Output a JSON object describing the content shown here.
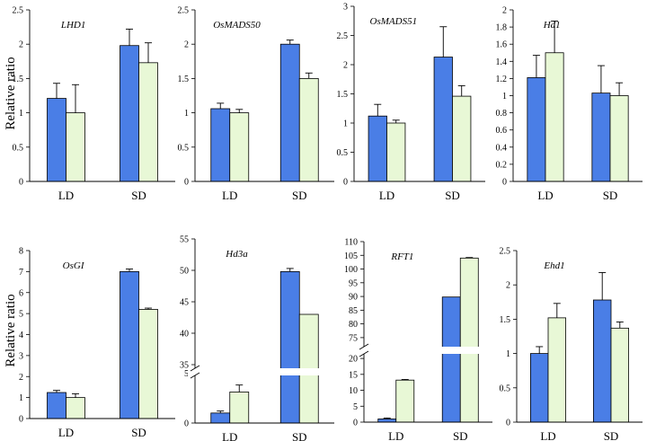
{
  "figure": {
    "ylabel": "Relative ratio",
    "colors": {
      "ld_series": "#4a7ee6",
      "sd_series": "#e8f8d6",
      "axis": "#000000"
    }
  },
  "chart_data": [
    {
      "type": "bar",
      "title": "LHD1",
      "categories": [
        "LD",
        "SD"
      ],
      "series": [
        {
          "values": [
            1.21,
            1.98
          ],
          "errors": [
            0.22,
            0.24
          ]
        },
        {
          "values": [
            1.0,
            1.73
          ],
          "errors": [
            0.41,
            0.29
          ]
        }
      ],
      "ylim": [
        0,
        2.5
      ],
      "yticks": [
        "0",
        "0.5",
        "1",
        "1.5",
        "2",
        "2.5"
      ]
    },
    {
      "type": "bar",
      "title": "OsMADS50",
      "categories": [
        "LD",
        "SD"
      ],
      "series": [
        {
          "values": [
            1.06,
            2.0
          ],
          "errors": [
            0.08,
            0.06
          ]
        },
        {
          "values": [
            1.0,
            1.5
          ],
          "errors": [
            0.05,
            0.08
          ]
        }
      ],
      "ylim": [
        0,
        2.5
      ],
      "yticks": [
        "0",
        "0.5",
        "1",
        "1.5",
        "2",
        "2.5"
      ]
    },
    {
      "type": "bar",
      "title": "OsMADS51",
      "categories": [
        "LD",
        "SD"
      ],
      "series": [
        {
          "values": [
            1.12,
            2.13
          ],
          "errors": [
            0.2,
            0.52
          ]
        },
        {
          "values": [
            1.0,
            1.46
          ],
          "errors": [
            0.05,
            0.18
          ]
        }
      ],
      "ylim": [
        0,
        3
      ],
      "yticks": [
        "0",
        "0.5",
        "1",
        "1.5",
        "2",
        "2.5",
        "3"
      ]
    },
    {
      "type": "bar",
      "title": "Hd1",
      "categories": [
        "LD",
        "SD"
      ],
      "series": [
        {
          "values": [
            1.21,
            1.03
          ],
          "errors": [
            0.26,
            0.32
          ]
        },
        {
          "values": [
            1.5,
            1.0
          ],
          "errors": [
            0.37,
            0.15
          ]
        }
      ],
      "ylim": [
        0,
        2
      ],
      "yticks": [
        "0",
        "0.2",
        "0.4",
        "0.6",
        "0.8",
        "1",
        "1.2",
        "1.4",
        "1.6",
        "1.8",
        "2"
      ]
    },
    {
      "type": "bar",
      "title": "OsGI",
      "categories": [
        "LD",
        "SD"
      ],
      "series": [
        {
          "values": [
            1.24,
            7.0
          ],
          "errors": [
            0.1,
            0.12
          ]
        },
        {
          "values": [
            1.0,
            5.2
          ],
          "errors": [
            0.18,
            0.06
          ]
        }
      ],
      "ylim": [
        0,
        8
      ],
      "yticks": [
        "0",
        "1",
        "2",
        "3",
        "4",
        "5",
        "6",
        "7",
        "8"
      ]
    },
    {
      "type": "bar",
      "title": "Hd3a",
      "categories": [
        "LD",
        "SD"
      ],
      "series": [
        {
          "values": [
            1.0,
            49.8
          ],
          "errors": [
            0.2,
            0.5
          ]
        },
        {
          "values": [
            3.1,
            43.0
          ],
          "errors": [
            0.7,
            0
          ]
        }
      ],
      "ylim": [
        0,
        55
      ],
      "axis_break": [
        7,
        34
      ],
      "yticks_lower": [
        "0",
        "5"
      ],
      "yticks_upper": [
        "35",
        "40",
        "45",
        "50",
        "55"
      ]
    },
    {
      "type": "bar",
      "title": "RFT1",
      "categories": [
        "LD",
        "SD"
      ],
      "series": [
        {
          "values": [
            1.0,
            89.8
          ],
          "errors": [
            0.3,
            0
          ]
        },
        {
          "values": [
            13.2,
            104.0
          ],
          "errors": [
            0.2,
            0.2
          ]
        }
      ],
      "ylim": [
        0,
        110
      ],
      "axis_break": [
        22,
        73
      ],
      "yticks_lower": [
        "0",
        "5",
        "10",
        "15",
        "20"
      ],
      "yticks_upper": [
        "75",
        "80",
        "85",
        "90",
        "95",
        "100",
        "105",
        "110"
      ]
    },
    {
      "type": "bar",
      "title": "Ehd1",
      "categories": [
        "LD",
        "SD"
      ],
      "series": [
        {
          "values": [
            1.0,
            1.78
          ],
          "errors": [
            0.1,
            0.4
          ]
        },
        {
          "values": [
            1.52,
            1.37
          ],
          "errors": [
            0.21,
            0.09
          ]
        }
      ],
      "ylim": [
        0,
        2.5
      ],
      "yticks": [
        "0",
        "0.5",
        "1",
        "1.5",
        "2",
        "2.5"
      ]
    }
  ]
}
